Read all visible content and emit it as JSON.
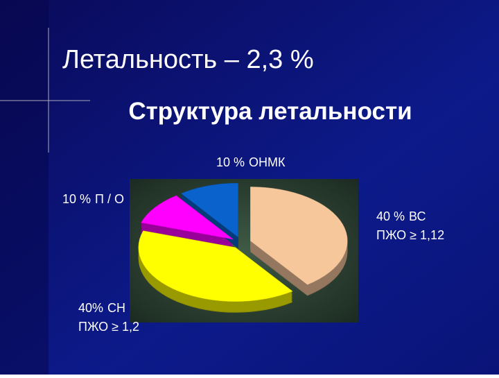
{
  "heading": "Летальность – 2,3 %",
  "chart_data": {
    "type": "pie",
    "title": "Структура летальности",
    "categories": [
      [
        "ВС",
        "ПЖО ≥ 1,12"
      ],
      [
        "СН",
        "ПЖО ≥ 1,2"
      ],
      [
        "П / О"
      ],
      [
        "ОНМК"
      ]
    ],
    "values": [
      40,
      40,
      10,
      10
    ],
    "value_labels": [
      "40 %",
      "40%",
      "10 %",
      "10 %"
    ],
    "colors": [
      "#f7c79c",
      "#ffff00",
      "#ff00ff",
      "#0a62cc"
    ]
  }
}
